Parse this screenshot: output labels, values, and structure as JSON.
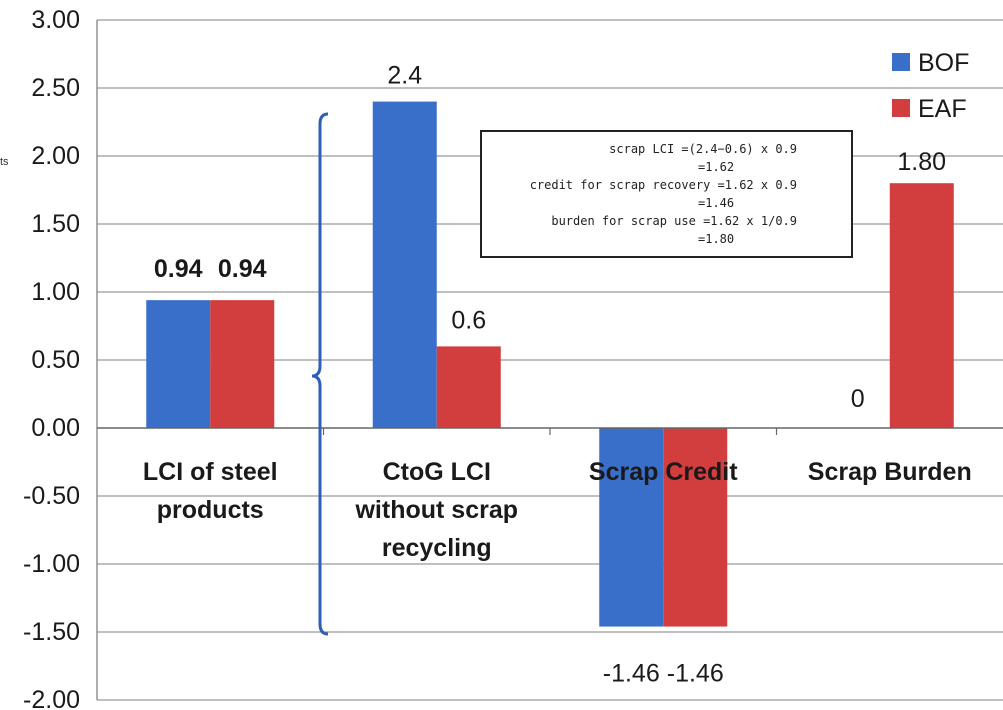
{
  "chart_data": {
    "type": "bar",
    "title": "",
    "xlabel": "",
    "ylabel": "ts",
    "ylim": [
      -2.0,
      3.0
    ],
    "yticks": [
      "3.00",
      "2.50",
      "2.00",
      "1.50",
      "1.00",
      "0.50",
      "0.00",
      "-0.50",
      "-1.00",
      "-1.50",
      "-2.00"
    ],
    "grid": true,
    "legend_position": "top-right",
    "categories": [
      [
        "LCI of steel",
        "products"
      ],
      [
        "CtoG LCI",
        "without scrap",
        "recycling"
      ],
      [
        "Scrap Credit"
      ],
      [
        "Scrap Burden"
      ]
    ],
    "series": [
      {
        "name": "BOF",
        "color": "#3a6fc9",
        "values": [
          0.94,
          2.4,
          -1.46,
          0
        ],
        "labels": [
          "0.94",
          "2.4",
          "-1.46",
          "0"
        ]
      },
      {
        "name": "EAF",
        "color": "#d23d3d",
        "values": [
          0.94,
          0.6,
          -1.46,
          1.8
        ],
        "labels": [
          "0.94",
          "0.6",
          "-1.46",
          "1.80"
        ]
      }
    ],
    "annotation": [
      "scrap LCI =(2.4−0.6) x 0.9",
      "=1.62",
      "credit for scrap recovery =1.62 x 0.9",
      "=1.46",
      "burden for scrap use =1.62 x 1/0.9",
      "=1.80"
    ]
  }
}
